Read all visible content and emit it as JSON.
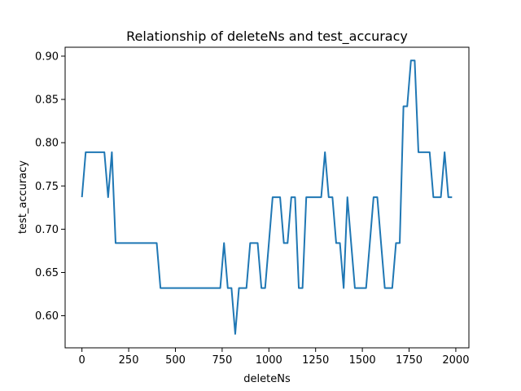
{
  "chart_data": {
    "type": "line",
    "title": "Relationship of deleteNs and test_accuracy",
    "xlabel": "deleteNs",
    "ylabel": "test_accuracy",
    "xlim": [
      -90,
      2070
    ],
    "ylim": [
      0.5629,
      0.9103
    ],
    "xticks": [
      0,
      250,
      500,
      750,
      1000,
      1250,
      1500,
      1750,
      2000
    ],
    "xtick_labels": [
      "0",
      "250",
      "500",
      "750",
      "1000",
      "1250",
      "1500",
      "1750",
      "2000"
    ],
    "yticks": [
      0.6,
      0.65,
      0.7,
      0.75,
      0.8,
      0.85,
      0.9
    ],
    "ytick_labels": [
      "0.60",
      "0.65",
      "0.70",
      "0.75",
      "0.80",
      "0.85",
      "0.90"
    ],
    "grid": false,
    "series": [
      {
        "color": "#1f77b4",
        "x": [
          0,
          20,
          40,
          60,
          80,
          100,
          120,
          140,
          160,
          180,
          200,
          220,
          240,
          260,
          280,
          300,
          320,
          340,
          360,
          380,
          400,
          420,
          440,
          460,
          480,
          500,
          520,
          540,
          560,
          580,
          600,
          620,
          640,
          660,
          680,
          700,
          720,
          740,
          760,
          780,
          800,
          820,
          840,
          860,
          880,
          900,
          920,
          940,
          960,
          980,
          1000,
          1020,
          1040,
          1060,
          1080,
          1100,
          1120,
          1140,
          1160,
          1180,
          1200,
          1220,
          1240,
          1260,
          1280,
          1300,
          1320,
          1340,
          1360,
          1380,
          1400,
          1420,
          1440,
          1460,
          1480,
          1500,
          1520,
          1540,
          1560,
          1580,
          1600,
          1620,
          1640,
          1660,
          1680,
          1700,
          1720,
          1740,
          1760,
          1780,
          1800,
          1820,
          1840,
          1860,
          1880,
          1900,
          1920,
          1940,
          1960,
          1980
        ],
        "y": [
          0.737,
          0.789,
          0.789,
          0.789,
          0.789,
          0.789,
          0.789,
          0.737,
          0.789,
          0.684,
          0.684,
          0.684,
          0.684,
          0.684,
          0.684,
          0.684,
          0.684,
          0.684,
          0.684,
          0.684,
          0.684,
          0.632,
          0.632,
          0.632,
          0.632,
          0.632,
          0.632,
          0.632,
          0.632,
          0.632,
          0.632,
          0.632,
          0.632,
          0.632,
          0.632,
          0.632,
          0.632,
          0.632,
          0.684,
          0.632,
          0.632,
          0.579,
          0.632,
          0.632,
          0.632,
          0.684,
          0.684,
          0.684,
          0.632,
          0.632,
          0.684,
          0.737,
          0.737,
          0.737,
          0.684,
          0.684,
          0.737,
          0.737,
          0.632,
          0.632,
          0.737,
          0.737,
          0.737,
          0.737,
          0.737,
          0.789,
          0.737,
          0.737,
          0.684,
          0.684,
          0.632,
          0.737,
          0.684,
          0.632,
          0.632,
          0.632,
          0.632,
          0.684,
          0.737,
          0.737,
          0.684,
          0.632,
          0.632,
          0.632,
          0.684,
          0.684,
          0.842,
          0.842,
          0.895,
          0.895,
          0.789,
          0.789,
          0.789,
          0.789,
          0.737,
          0.737,
          0.737,
          0.789,
          0.737,
          0.737
        ]
      }
    ]
  }
}
